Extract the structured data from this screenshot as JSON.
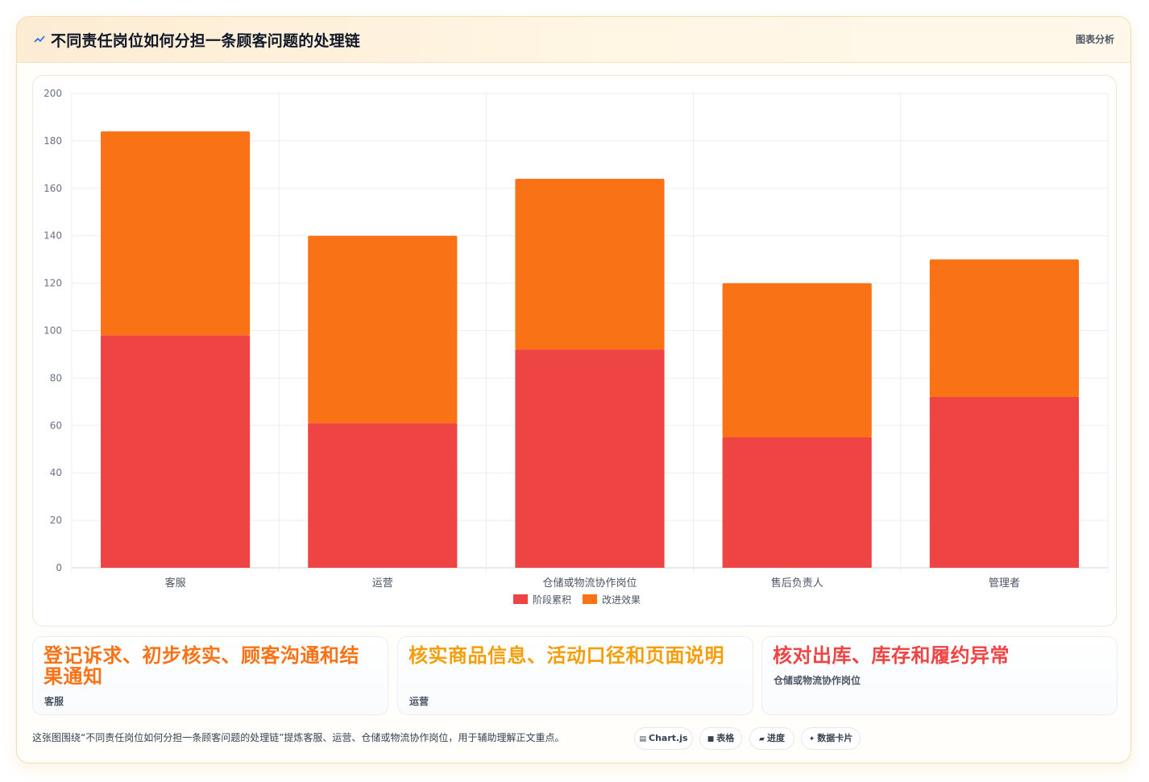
{
  "header": {
    "icon": "chart-line-icon",
    "title": "不同责任岗位如何分担一条顾客问题的处理链",
    "badge": "图表分析"
  },
  "chart_data": {
    "type": "bar",
    "stacked": true,
    "categories": [
      "客服",
      "运营",
      "仓储或物流协作岗位",
      "售后负责人",
      "管理者"
    ],
    "series": [
      {
        "name": "阶段累积",
        "color": "#ef4444",
        "values": [
          98,
          61,
          92,
          55,
          72
        ]
      },
      {
        "name": "改进效果",
        "color": "#f97316",
        "values": [
          86,
          79,
          72,
          65,
          58
        ]
      }
    ],
    "ylim": [
      0,
      200
    ],
    "yticks": [
      "0",
      "20",
      "40",
      "60",
      "80",
      "100",
      "120",
      "140",
      "160",
      "180",
      "200"
    ],
    "grid": true,
    "legend": "bottom"
  },
  "cards": [
    {
      "title": "登记诉求、初步核实、顾客沟通和结果通知",
      "sub": "客服",
      "color": "#f97316"
    },
    {
      "title": "核实商品信息、活动口径和页面说明",
      "sub": "运营",
      "color": "#f59e0b"
    },
    {
      "title": "核对出库、库存和履约异常",
      "sub": "仓储或物流协作岗位",
      "color": "#ef4444"
    }
  ],
  "footer": {
    "text": "这张图围绕“不同责任岗位如何分担一条顾客问题的处理链”提炼客服、运营、仓储或物流协作岗位，用于辅助理解正文重点。",
    "chips": [
      {
        "label": "Chart.js",
        "icon": "chart-icon"
      },
      {
        "label": "表格",
        "icon": "table-icon"
      },
      {
        "label": "进度",
        "icon": "progress-icon"
      },
      {
        "label": "数据卡片",
        "icon": "sparkle-icon"
      }
    ]
  }
}
